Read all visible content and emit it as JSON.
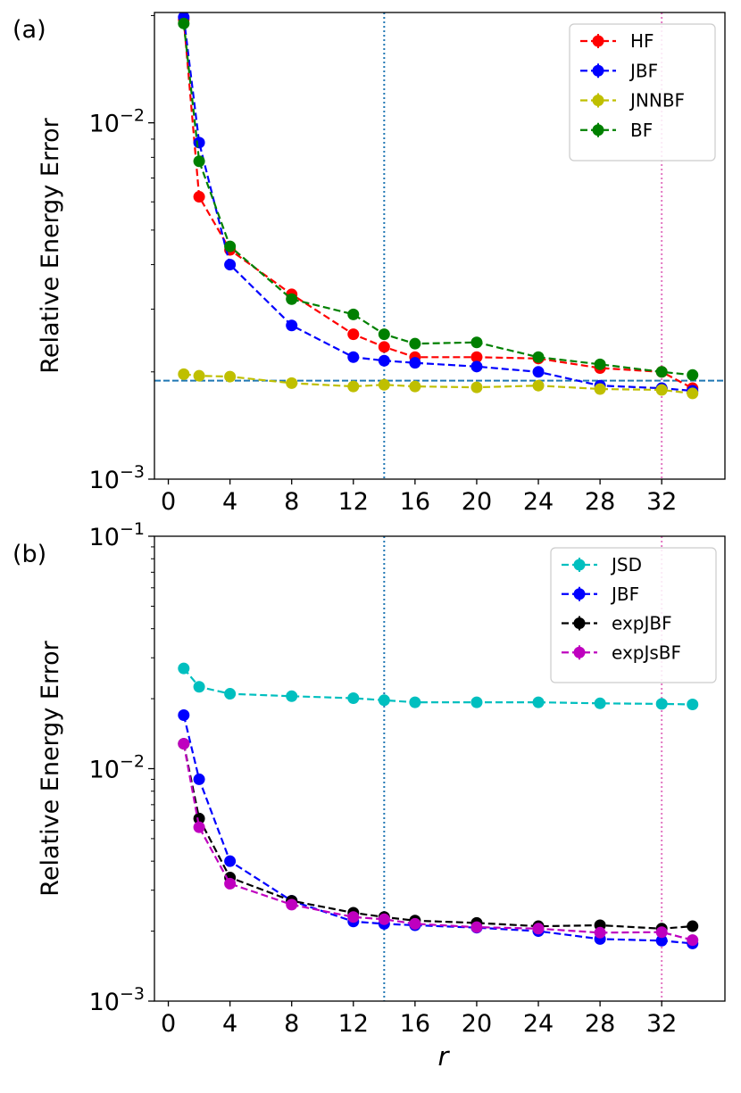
{
  "chart_data": [
    {
      "type": "line",
      "panel_label": "(a)",
      "title": "",
      "xlabel": "",
      "ylabel": "Relative Energy Error",
      "xlim": [
        -0.9,
        36.1
      ],
      "ylim": [
        0.001,
        0.0204
      ],
      "yscale": "log",
      "xticks": [
        0,
        4,
        8,
        12,
        16,
        20,
        24,
        28,
        32
      ],
      "xtick_labels": [
        "0",
        "4",
        "8",
        "12",
        "16",
        "20",
        "24",
        "28",
        "32"
      ],
      "yticks": [
        {
          "value": 0.001,
          "base": "10",
          "exp": "−3"
        },
        {
          "value": 0.01,
          "base": "10",
          "exp": "−2"
        }
      ],
      "hline": {
        "y": 0.00189,
        "color": "#1f77b4"
      },
      "vlines": [
        {
          "x": 14,
          "color": "#1f77b4"
        },
        {
          "x": 32,
          "color": "#e377c2"
        }
      ],
      "legend_position": "top-right",
      "x": [
        1,
        2,
        4,
        8,
        12,
        14,
        16,
        20,
        24,
        28,
        32,
        34
      ],
      "series": [
        {
          "name": "HF",
          "color": "#ff0000",
          "values": [
            0.0195,
            0.0062,
            0.0044,
            0.0033,
            0.00255,
            0.00235,
            0.0022,
            0.0022,
            0.00218,
            0.00205,
            0.002,
            0.0018
          ]
        },
        {
          "name": "JBF",
          "color": "#0000ff",
          "values": [
            0.0198,
            0.0088,
            0.004,
            0.0027,
            0.0022,
            0.00215,
            0.00212,
            0.00207,
            0.002,
            0.00183,
            0.0018,
            0.00177
          ]
        },
        {
          "name": "JNNBF",
          "color": "#bfbf00",
          "values": [
            0.00197,
            0.00195,
            0.00194,
            0.00186,
            0.00182,
            0.00184,
            0.00182,
            0.00181,
            0.00183,
            0.00179,
            0.00178,
            0.00174
          ]
        },
        {
          "name": "BF",
          "color": "#008000",
          "values": [
            0.019,
            0.0078,
            0.0045,
            0.0032,
            0.0029,
            0.00255,
            0.0024,
            0.00242,
            0.0022,
            0.0021,
            0.002,
            0.00196
          ]
        }
      ]
    },
    {
      "type": "line",
      "panel_label": "(b)",
      "title": "",
      "xlabel": "r",
      "ylabel": "Relative Energy Error",
      "xlim": [
        -0.9,
        36.1
      ],
      "ylim": [
        0.001,
        0.1
      ],
      "yscale": "log",
      "xticks": [
        0,
        4,
        8,
        12,
        16,
        20,
        24,
        28,
        32
      ],
      "xtick_labels": [
        "0",
        "4",
        "8",
        "12",
        "16",
        "20",
        "24",
        "28",
        "32"
      ],
      "yticks": [
        {
          "value": 0.001,
          "base": "10",
          "exp": "−3"
        },
        {
          "value": 0.01,
          "base": "10",
          "exp": "−2"
        },
        {
          "value": 0.1,
          "base": "10",
          "exp": "−1"
        }
      ],
      "vlines": [
        {
          "x": 14,
          "color": "#1f77b4"
        },
        {
          "x": 32,
          "color": "#e377c2"
        }
      ],
      "legend_position": "top-right",
      "x": [
        1,
        2,
        4,
        8,
        12,
        14,
        16,
        20,
        24,
        28,
        32,
        34
      ],
      "series": [
        {
          "name": "JSD",
          "color": "#00bfbf",
          "values": [
            0.027,
            0.0225,
            0.021,
            0.0205,
            0.0201,
            0.0197,
            0.0193,
            0.0193,
            0.0193,
            0.0191,
            0.019,
            0.0189
          ]
        },
        {
          "name": "JBF",
          "color": "#0000ff",
          "values": [
            0.017,
            0.009,
            0.004,
            0.0027,
            0.0022,
            0.00215,
            0.00212,
            0.00207,
            0.002,
            0.00185,
            0.00182,
            0.00177
          ]
        },
        {
          "name": "expJBF",
          "color": "#000000",
          "values": [
            0.0128,
            0.0061,
            0.0034,
            0.0027,
            0.0024,
            0.0023,
            0.00222,
            0.00217,
            0.0021,
            0.00212,
            0.00205,
            0.0021
          ]
        },
        {
          "name": "expJsBF",
          "color": "#bf00bf",
          "values": [
            0.0128,
            0.0056,
            0.0032,
            0.0026,
            0.0023,
            0.00225,
            0.00215,
            0.00208,
            0.00205,
            0.00197,
            0.00198,
            0.00183
          ]
        }
      ]
    }
  ]
}
